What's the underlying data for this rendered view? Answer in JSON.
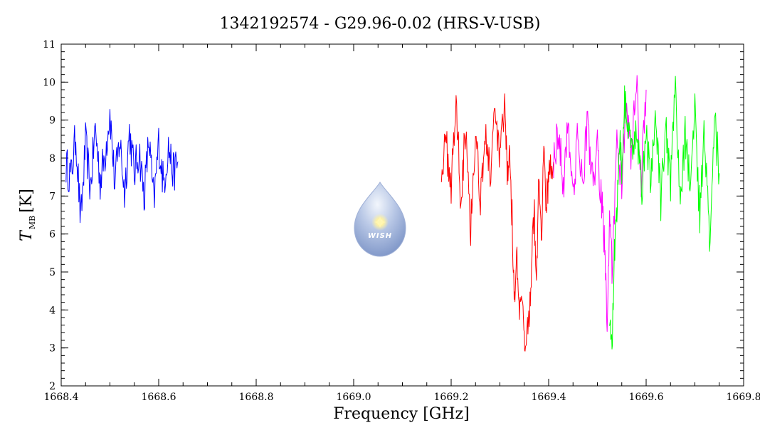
{
  "chart_data": {
    "type": "line",
    "title": "1342192574 - G29.96-0.02 (HRS-V-USB)",
    "xlabel": "Frequency [GHz]",
    "ylabel_main": "T",
    "ylabel_sub": "MB",
    "ylabel_unit": "[K]",
    "xlim": [
      1668.4,
      1669.8
    ],
    "ylim": [
      2,
      11
    ],
    "xticks": [
      1668.4,
      1668.6,
      1668.8,
      1669.0,
      1669.2,
      1669.4,
      1669.6,
      1669.8
    ],
    "xtick_labels": [
      "1668.4",
      "1668.6",
      "1668.8",
      "1669.0",
      "1669.2",
      "1669.4",
      "1669.6",
      "1669.8"
    ],
    "yticks": [
      2,
      3,
      4,
      5,
      6,
      7,
      8,
      9,
      10,
      11
    ],
    "ytick_labels": [
      "2",
      "3",
      "4",
      "5",
      "6",
      "7",
      "8",
      "9",
      "10",
      "11"
    ],
    "grid": false,
    "series": [
      {
        "color": "#0000ff",
        "x": [
          1668.41,
          1668.42,
          1668.43,
          1668.44,
          1668.45,
          1668.46,
          1668.47,
          1668.48,
          1668.49,
          1668.5,
          1668.51,
          1668.52,
          1668.53,
          1668.54,
          1668.55,
          1668.56,
          1668.57,
          1668.58,
          1668.59,
          1668.6,
          1668.61,
          1668.62,
          1668.63,
          1668.64
        ],
        "y": [
          7.8,
          7.5,
          8.6,
          6.3,
          8.4,
          7.2,
          8.8,
          7.4,
          8.1,
          9.2,
          7.3,
          8.5,
          7.1,
          8.7,
          7.6,
          8.2,
          7.0,
          8.5,
          6.8,
          8.4,
          7.3,
          8.3,
          7.6,
          7.9
        ]
      },
      {
        "color": "#ff0000",
        "x": [
          1669.18,
          1669.19,
          1669.2,
          1669.21,
          1669.22,
          1669.23,
          1669.24,
          1669.25,
          1669.26,
          1669.27,
          1669.28,
          1669.29,
          1669.3,
          1669.31,
          1669.315,
          1669.32,
          1669.325,
          1669.33,
          1669.335,
          1669.34,
          1669.345,
          1669.35,
          1669.355,
          1669.36,
          1669.365,
          1669.37,
          1669.375,
          1669.38,
          1669.385,
          1669.39,
          1669.395,
          1669.4,
          1669.41
        ],
        "y": [
          7.8,
          8.3,
          7.3,
          9.5,
          6.9,
          9.0,
          6.2,
          8.7,
          7.0,
          8.6,
          7.6,
          9.0,
          8.0,
          9.3,
          7.5,
          8.3,
          6.4,
          4.2,
          5.3,
          3.8,
          4.4,
          3.1,
          3.5,
          3.9,
          5.0,
          6.8,
          4.6,
          7.8,
          6.0,
          8.2,
          6.6,
          7.7,
          7.9
        ]
      },
      {
        "color": "#ff00ff",
        "x": [
          1669.41,
          1669.42,
          1669.43,
          1669.44,
          1669.45,
          1669.46,
          1669.47,
          1669.48,
          1669.49,
          1669.5,
          1669.51,
          1669.515,
          1669.52,
          1669.525,
          1669.53,
          1669.54,
          1669.55,
          1669.56,
          1669.57,
          1669.58,
          1669.59,
          1669.6
        ],
        "y": [
          7.9,
          8.8,
          7.2,
          9.1,
          6.9,
          8.6,
          7.4,
          9.0,
          7.3,
          8.2,
          6.6,
          5.7,
          3.8,
          6.1,
          5.2,
          8.2,
          7.4,
          9.3,
          8.0,
          10.0,
          7.4,
          9.8
        ]
      },
      {
        "color": "#00ff00",
        "x": [
          1669.525,
          1669.53,
          1669.535,
          1669.54,
          1669.545,
          1669.55,
          1669.555,
          1669.56,
          1669.57,
          1669.58,
          1669.59,
          1669.6,
          1669.61,
          1669.62,
          1669.63,
          1669.64,
          1669.65,
          1669.66,
          1669.67,
          1669.68,
          1669.69,
          1669.7,
          1669.71,
          1669.72,
          1669.73,
          1669.74,
          1669.75
        ],
        "y": [
          4.0,
          2.8,
          5.5,
          6.8,
          8.6,
          7.8,
          9.5,
          9.1,
          8.0,
          9.0,
          7.1,
          8.6,
          7.4,
          9.1,
          6.8,
          8.8,
          7.2,
          9.8,
          6.6,
          8.7,
          7.2,
          9.3,
          6.4,
          8.8,
          5.6,
          9.1,
          7.6
        ]
      }
    ]
  },
  "logo": {
    "text": "WISH",
    "colors": {
      "drop_top": "#e8eef8",
      "drop_bottom": "#7f9acb",
      "star": "#fff3a0"
    }
  }
}
